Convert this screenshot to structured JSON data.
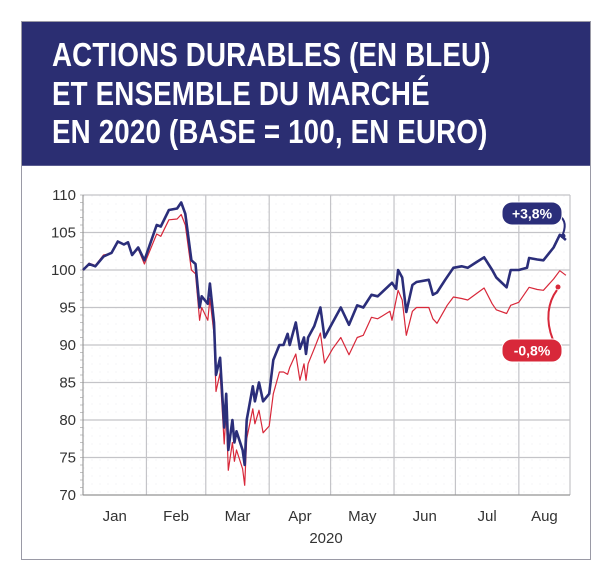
{
  "title_lines": [
    "ACTIONS DURABLES (EN BLEU)",
    "ET ENSEMBLE DU MARCHÉ",
    "EN 2020 (BASE = 100, EN EURO)"
  ],
  "colors": {
    "header": "#2b2e72",
    "blue_series": "#2b2e7a",
    "red_series": "#d8283a",
    "grid": "#c4c4c8"
  },
  "chart_data": {
    "type": "line",
    "title": "ACTIONS DURABLES (EN BLEU) ET ENSEMBLE DU MARCHÉ EN 2020 (BASE = 100, EN EURO)",
    "xlabel": "2020",
    "ylabel": "",
    "ylim": [
      70,
      110
    ],
    "xlim": [
      "2020-01-01",
      "2020-08-26"
    ],
    "yticks": [
      70,
      75,
      80,
      85,
      90,
      95,
      100,
      105,
      110
    ],
    "xticks": [
      "Jan",
      "Feb",
      "Mar",
      "Apr",
      "May",
      "Jun",
      "Jul",
      "Aug"
    ],
    "grid": true,
    "annotations": [
      {
        "text": "+3,8%",
        "series": "blue",
        "color": "#2b2e7a"
      },
      {
        "text": "-0,8%",
        "series": "red",
        "color": "#d8283a"
      }
    ],
    "series": [
      {
        "color": "#2b2e7a",
        "points": [
          [
            "2020-01-01",
            100
          ],
          [
            "2020-01-04",
            100.8
          ],
          [
            "2020-01-07",
            100.5
          ],
          [
            "2020-01-11",
            101.8
          ],
          [
            "2020-01-15",
            102.3
          ],
          [
            "2020-01-18",
            103.8
          ],
          [
            "2020-01-21",
            103.4
          ],
          [
            "2020-01-23",
            103.7
          ],
          [
            "2020-01-25",
            102
          ],
          [
            "2020-01-28",
            103
          ],
          [
            "2020-01-31",
            101.3
          ],
          [
            "2020-02-06",
            106
          ],
          [
            "2020-02-08",
            105.8
          ],
          [
            "2020-02-12",
            108
          ],
          [
            "2020-02-16",
            108.2
          ],
          [
            "2020-02-18",
            109
          ],
          [
            "2020-02-20",
            107.5
          ],
          [
            "2020-02-23",
            101.3
          ],
          [
            "2020-02-25",
            100.8
          ],
          [
            "2020-02-27",
            95
          ],
          [
            "2020-02-28",
            96.5
          ],
          [
            "2020-03-02",
            95.5
          ],
          [
            "2020-03-03",
            98.2
          ],
          [
            "2020-03-05",
            93
          ],
          [
            "2020-03-06",
            86
          ],
          [
            "2020-03-08",
            88.3
          ],
          [
            "2020-03-10",
            79
          ],
          [
            "2020-03-11",
            83.5
          ],
          [
            "2020-03-12",
            76
          ],
          [
            "2020-03-14",
            80
          ],
          [
            "2020-03-15",
            77
          ],
          [
            "2020-03-16",
            78.5
          ],
          [
            "2020-03-19",
            76
          ],
          [
            "2020-03-20",
            74
          ],
          [
            "2020-03-21",
            80
          ],
          [
            "2020-03-24",
            84.5
          ],
          [
            "2020-03-25",
            82.5
          ],
          [
            "2020-03-27",
            85
          ],
          [
            "2020-03-29",
            82.5
          ],
          [
            "2020-04-01",
            83.5
          ],
          [
            "2020-04-03",
            88
          ],
          [
            "2020-04-06",
            90
          ],
          [
            "2020-04-08",
            90
          ],
          [
            "2020-04-10",
            91.5
          ],
          [
            "2020-04-11",
            90
          ],
          [
            "2020-04-14",
            93
          ],
          [
            "2020-04-16",
            89.5
          ],
          [
            "2020-04-18",
            91
          ],
          [
            "2020-04-19",
            88.8
          ],
          [
            "2020-04-20",
            91
          ],
          [
            "2020-04-23",
            92.5
          ],
          [
            "2020-04-26",
            95
          ],
          [
            "2020-04-28",
            91
          ],
          [
            "2020-05-02",
            93
          ],
          [
            "2020-05-06",
            95
          ],
          [
            "2020-05-10",
            92.7
          ],
          [
            "2020-05-14",
            95.3
          ],
          [
            "2020-05-17",
            95
          ],
          [
            "2020-05-21",
            96.7
          ],
          [
            "2020-05-24",
            96.5
          ],
          [
            "2020-05-31",
            98.3
          ],
          [
            "2020-06-02",
            97.5
          ],
          [
            "2020-06-03",
            100
          ],
          [
            "2020-06-05",
            99
          ],
          [
            "2020-06-07",
            94.4
          ],
          [
            "2020-06-10",
            98
          ],
          [
            "2020-06-12",
            98.4
          ],
          [
            "2020-06-18",
            98.7
          ],
          [
            "2020-06-20",
            96.7
          ],
          [
            "2020-06-22",
            97
          ],
          [
            "2020-06-26",
            98.7
          ],
          [
            "2020-06-30",
            100.3
          ],
          [
            "2020-07-04",
            100.5
          ],
          [
            "2020-07-07",
            100.3
          ],
          [
            "2020-07-11",
            101
          ],
          [
            "2020-07-15",
            101.7
          ],
          [
            "2020-07-19",
            100
          ],
          [
            "2020-07-21",
            99
          ],
          [
            "2020-07-26",
            97.7
          ],
          [
            "2020-07-28",
            100
          ],
          [
            "2020-08-01",
            100
          ],
          [
            "2020-08-05",
            100.3
          ],
          [
            "2020-08-06",
            101.6
          ],
          [
            "2020-08-10",
            101.4
          ],
          [
            "2020-08-13",
            101.3
          ],
          [
            "2020-08-18",
            103
          ],
          [
            "2020-08-21",
            104.7
          ],
          [
            "2020-08-24",
            104
          ]
        ]
      },
      {
        "color": "#d8283a",
        "points": [
          [
            "2020-01-01",
            100
          ],
          [
            "2020-01-04",
            100.9
          ],
          [
            "2020-01-07",
            100.6
          ],
          [
            "2020-01-11",
            102
          ],
          [
            "2020-01-15",
            102.2
          ],
          [
            "2020-01-18",
            103.7
          ],
          [
            "2020-01-21",
            103.4
          ],
          [
            "2020-01-23",
            103.6
          ],
          [
            "2020-01-25",
            102
          ],
          [
            "2020-01-28",
            102.8
          ],
          [
            "2020-01-31",
            100.8
          ],
          [
            "2020-02-06",
            104.8
          ],
          [
            "2020-02-08",
            104.5
          ],
          [
            "2020-02-12",
            106.7
          ],
          [
            "2020-02-16",
            106.8
          ],
          [
            "2020-02-18",
            107.4
          ],
          [
            "2020-02-20",
            106
          ],
          [
            "2020-02-23",
            100
          ],
          [
            "2020-02-25",
            99.5
          ],
          [
            "2020-02-27",
            93.3
          ],
          [
            "2020-02-28",
            95
          ],
          [
            "2020-03-02",
            93.3
          ],
          [
            "2020-03-03",
            96.2
          ],
          [
            "2020-03-05",
            91.5
          ],
          [
            "2020-03-06",
            83.8
          ],
          [
            "2020-03-08",
            86.3
          ],
          [
            "2020-03-10",
            76.8
          ],
          [
            "2020-03-11",
            81.3
          ],
          [
            "2020-03-12",
            73.3
          ],
          [
            "2020-03-14",
            77
          ],
          [
            "2020-03-15",
            74.5
          ],
          [
            "2020-03-16",
            76
          ],
          [
            "2020-03-19",
            73.5
          ],
          [
            "2020-03-20",
            71.3
          ],
          [
            "2020-03-21",
            77.5
          ],
          [
            "2020-03-24",
            81.5
          ],
          [
            "2020-03-25",
            79.5
          ],
          [
            "2020-03-27",
            81.3
          ],
          [
            "2020-03-29",
            78.3
          ],
          [
            "2020-04-01",
            79.2
          ],
          [
            "2020-04-03",
            83.5
          ],
          [
            "2020-04-06",
            86.4
          ],
          [
            "2020-04-08",
            86.4
          ],
          [
            "2020-04-10",
            86.1
          ],
          [
            "2020-04-11",
            87
          ],
          [
            "2020-04-14",
            88.8
          ],
          [
            "2020-04-16",
            85.3
          ],
          [
            "2020-04-18",
            87.5
          ],
          [
            "2020-04-19",
            85.3
          ],
          [
            "2020-04-20",
            87.5
          ],
          [
            "2020-04-23",
            89.5
          ],
          [
            "2020-04-26",
            91.6
          ],
          [
            "2020-04-28",
            87.6
          ],
          [
            "2020-05-02",
            89.5
          ],
          [
            "2020-05-06",
            91
          ],
          [
            "2020-05-10",
            88.7
          ],
          [
            "2020-05-14",
            91
          ],
          [
            "2020-05-17",
            91.3
          ],
          [
            "2020-05-21",
            93.7
          ],
          [
            "2020-05-24",
            93.5
          ],
          [
            "2020-05-30",
            94.5
          ],
          [
            "2020-05-31",
            93.3
          ],
          [
            "2020-06-03",
            97.3
          ],
          [
            "2020-06-05",
            96
          ],
          [
            "2020-06-07",
            91.3
          ],
          [
            "2020-06-10",
            94.5
          ],
          [
            "2020-06-12",
            95
          ],
          [
            "2020-06-18",
            95
          ],
          [
            "2020-06-20",
            93.5
          ],
          [
            "2020-06-22",
            92.9
          ],
          [
            "2020-06-27",
            95.3
          ],
          [
            "2020-06-30",
            96.4
          ],
          [
            "2020-07-04",
            96.2
          ],
          [
            "2020-07-07",
            96
          ],
          [
            "2020-07-11",
            96.8
          ],
          [
            "2020-07-15",
            97.6
          ],
          [
            "2020-07-19",
            95.5
          ],
          [
            "2020-07-21",
            94.7
          ],
          [
            "2020-07-26",
            94.2
          ],
          [
            "2020-07-28",
            95.3
          ],
          [
            "2020-08-01",
            95.7
          ],
          [
            "2020-08-06",
            97.7
          ],
          [
            "2020-08-10",
            97.4
          ],
          [
            "2020-08-13",
            97.3
          ],
          [
            "2020-08-18",
            98.8
          ],
          [
            "2020-08-21",
            99.9
          ],
          [
            "2020-08-24",
            99.3
          ]
        ]
      }
    ]
  }
}
